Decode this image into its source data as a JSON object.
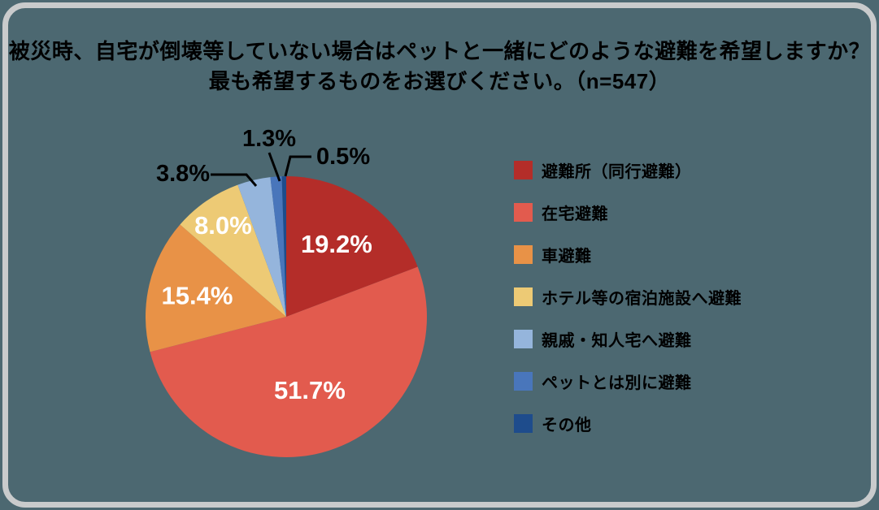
{
  "title": {
    "line1": "被災時、自宅が倒壊等していない場合はペットと一緒にどのような避難を希望しますか？",
    "line2": "最も希望するものをお選びください。（n=547）"
  },
  "sample_size_label": "n=547",
  "chart_data": {
    "type": "pie",
    "title": "被災時、自宅が倒壊等していない場合はペットと一緒にどのような避難を希望しますか？最も希望するものをお選びください。（n=547）",
    "categories": [
      "避難所（同行避難）",
      "在宅避難",
      "車避難",
      "ホテル等の宿泊施設へ避難",
      "親戚・知人宅へ避難",
      "ペットとは別に避難",
      "その他"
    ],
    "values": [
      19.2,
      51.7,
      15.4,
      8.0,
      3.8,
      1.3,
      0.5
    ],
    "value_labels": [
      "19.2%",
      "51.7%",
      "15.4%",
      "8.0%",
      "3.8%",
      "1.3%",
      "0.5%"
    ],
    "colors": [
      "#B42D29",
      "#E25B4E",
      "#E89247",
      "#EDCA75",
      "#95B5DC",
      "#4976BB",
      "#1E4C8C"
    ],
    "start_angle_deg": 0,
    "direction": "clockwise",
    "legend_position": "right",
    "inside_label_color": "#FFFFFF",
    "outside_label_color": "#000000"
  },
  "canvas": {
    "background": "#4C6871",
    "border_color": "#C9CBCC",
    "title_color": "#000000"
  }
}
